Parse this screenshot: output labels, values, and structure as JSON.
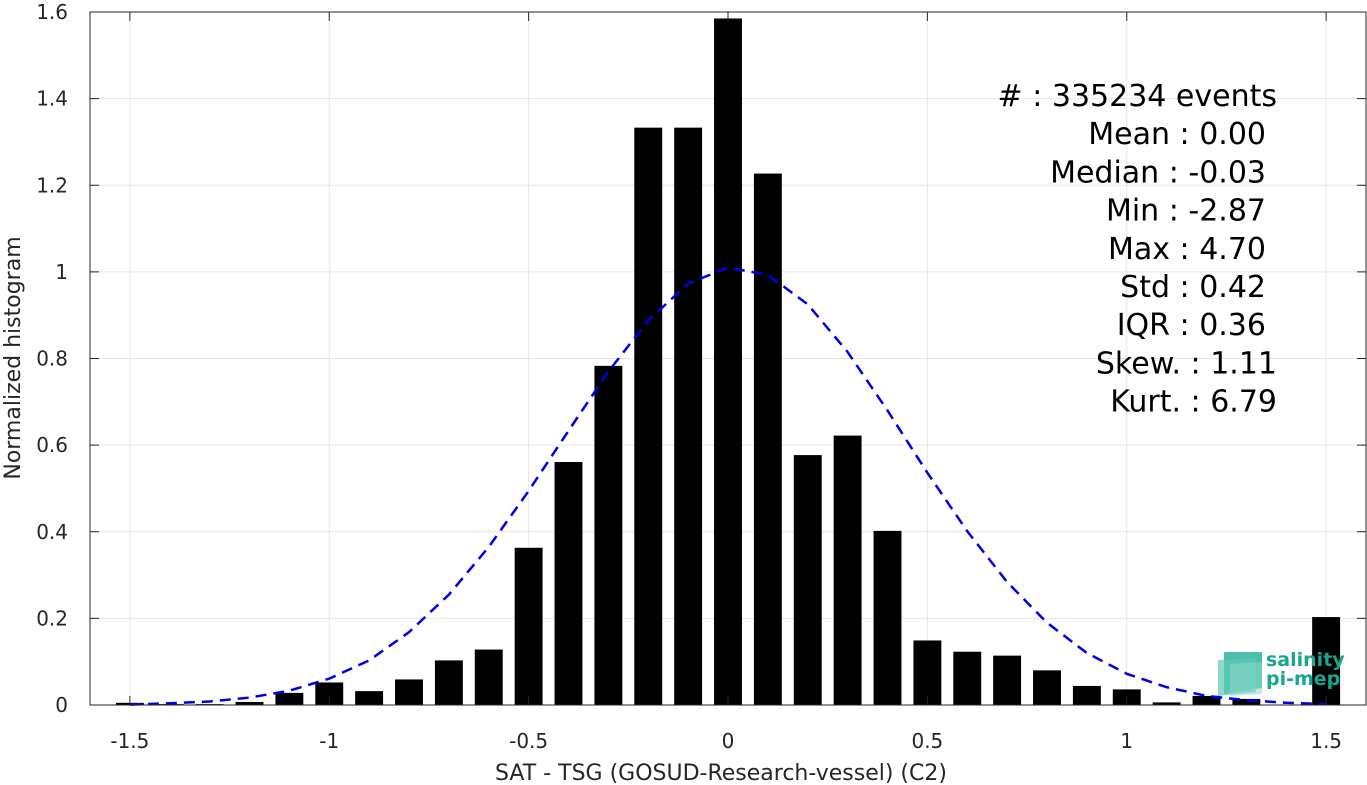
{
  "chart_data": {
    "type": "bar",
    "xlabel": "SAT - TSG (GOSUD-Research-vessel) (C2)",
    "ylabel": "Normalized histogram",
    "xlim": [
      -1.6,
      1.6
    ],
    "ylim": [
      0,
      1.6
    ],
    "x_ticks": [
      -1.5,
      -1,
      -0.5,
      0,
      0.5,
      1,
      1.5
    ],
    "x_tick_labels": [
      "-1.5",
      "-1",
      "-0.5",
      "0",
      "0.5",
      "1",
      "1.5"
    ],
    "y_ticks": [
      0,
      0.2,
      0.4,
      0.6,
      0.8,
      1,
      1.2,
      1.4,
      1.6
    ],
    "y_tick_labels": [
      "0",
      "0.2",
      "0.4",
      "0.6",
      "0.8",
      "1",
      "1.2",
      "1.4",
      "1.6"
    ],
    "grid": true,
    "bar_width": 0.07,
    "bar_color": "#000000",
    "bars": {
      "x": [
        -1.5,
        -1.4,
        -1.3,
        -1.2,
        -1.1,
        -1.0,
        -0.9,
        -0.8,
        -0.7,
        -0.6,
        -0.5,
        -0.4,
        -0.3,
        -0.2,
        -0.1,
        0.0,
        0.1,
        0.2,
        0.3,
        0.4,
        0.5,
        0.6,
        0.7,
        0.8,
        0.9,
        1.0,
        1.1,
        1.2,
        1.3,
        1.4,
        1.5
      ],
      "values": [
        0.005,
        0.002,
        0.002,
        0.007,
        0.028,
        0.052,
        0.032,
        0.059,
        0.103,
        0.128,
        0.363,
        0.561,
        0.783,
        1.333,
        1.333,
        1.585,
        1.227,
        0.577,
        0.622,
        0.402,
        0.149,
        0.123,
        0.114,
        0.08,
        0.044,
        0.036,
        0.006,
        0.021,
        0.014,
        0.001,
        0.203
      ]
    },
    "fit_curve": {
      "style": "dashed",
      "color": "#0000e6",
      "x": [
        -1.5,
        -1.4,
        -1.3,
        -1.2,
        -1.1,
        -1.0,
        -0.9,
        -0.8,
        -0.7,
        -0.6,
        -0.5,
        -0.4,
        -0.3,
        -0.2,
        -0.1,
        0.0,
        0.1,
        0.2,
        0.3,
        0.4,
        0.5,
        0.6,
        0.7,
        0.8,
        0.9,
        1.0,
        1.1,
        1.2,
        1.3,
        1.4,
        1.5
      ],
      "y": [
        0.001,
        0.004,
        0.008,
        0.017,
        0.033,
        0.061,
        0.103,
        0.168,
        0.255,
        0.365,
        0.494,
        0.633,
        0.77,
        0.888,
        0.973,
        1.01,
        0.993,
        0.925,
        0.815,
        0.68,
        0.536,
        0.401,
        0.284,
        0.19,
        0.12,
        0.072,
        0.041,
        0.021,
        0.011,
        0.005,
        0.002
      ]
    },
    "stats": [
      {
        "label": "#  : 335234 events"
      },
      {
        "label": "Mean : 0.00"
      },
      {
        "label": "Median : -0.03"
      },
      {
        "label": "Min : -2.87"
      },
      {
        "label": "Max : 4.70"
      },
      {
        "label": "Std : 0.42"
      },
      {
        "label": "IQR : 0.36"
      },
      {
        "label": "Skew. : 1.11"
      },
      {
        "label": "Kurt. : 6.79"
      }
    ]
  },
  "logo": {
    "line1": "salinity",
    "line2": "pi-mep",
    "color": "#1aa58f"
  }
}
